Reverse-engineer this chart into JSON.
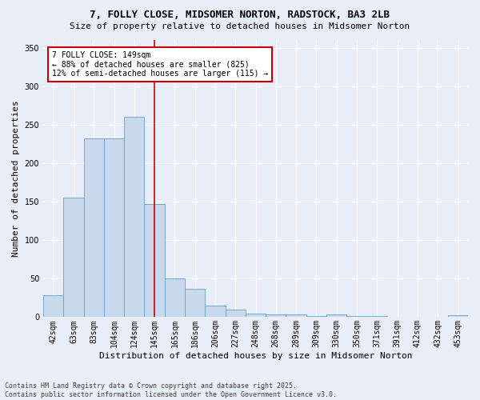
{
  "title1": "7, FOLLY CLOSE, MIDSOMER NORTON, RADSTOCK, BA3 2LB",
  "title2": "Size of property relative to detached houses in Midsomer Norton",
  "xlabel": "Distribution of detached houses by size in Midsomer Norton",
  "ylabel": "Number of detached properties",
  "categories": [
    "42sqm",
    "63sqm",
    "83sqm",
    "104sqm",
    "124sqm",
    "145sqm",
    "165sqm",
    "186sqm",
    "206sqm",
    "227sqm",
    "248sqm",
    "268sqm",
    "289sqm",
    "309sqm",
    "330sqm",
    "350sqm",
    "371sqm",
    "391sqm",
    "412sqm",
    "432sqm",
    "453sqm"
  ],
  "values": [
    28,
    155,
    232,
    232,
    260,
    147,
    50,
    37,
    15,
    10,
    5,
    4,
    4,
    1,
    4,
    1,
    1,
    0,
    0,
    0,
    3
  ],
  "bar_color": "#c9d9ed",
  "bar_edge_color": "#6a9ec5",
  "annotation_line1": "7 FOLLY CLOSE: 149sqm",
  "annotation_line2": "← 88% of detached houses are smaller (825)",
  "annotation_line3": "12% of semi-detached houses are larger (115) →",
  "annotation_box_color": "#ffffff",
  "annotation_box_edge": "#cc0000",
  "vline_color": "#cc0000",
  "vline_x": 5.0,
  "ylim": [
    0,
    360
  ],
  "yticks": [
    0,
    50,
    100,
    150,
    200,
    250,
    300,
    350
  ],
  "footer1": "Contains HM Land Registry data © Crown copyright and database right 2025.",
  "footer2": "Contains public sector information licensed under the Open Government Licence v3.0.",
  "bg_color": "#e8eef7",
  "plot_bg_color": "#e8eef7",
  "grid_color": "#ffffff",
  "title1_fontsize": 9,
  "title2_fontsize": 8,
  "ylabel_fontsize": 8,
  "xlabel_fontsize": 8,
  "tick_fontsize": 7,
  "annotation_fontsize": 7,
  "footer_fontsize": 6
}
